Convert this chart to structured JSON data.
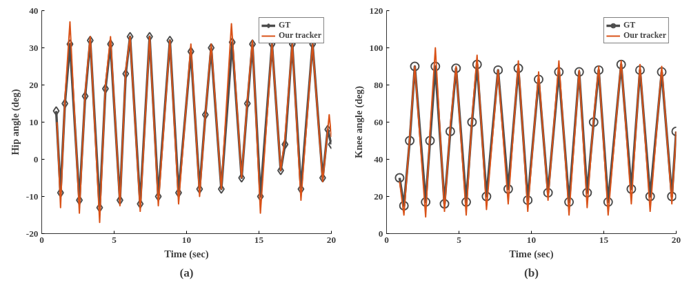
{
  "chart_data": [
    {
      "type": "line",
      "xlabel": "Time (sec)",
      "ylabel": "Hip angle (deg)",
      "annotations": [
        "(a)"
      ],
      "xlim": [
        0,
        20
      ],
      "ylim": [
        -20,
        40
      ],
      "xticks": [
        0,
        5,
        10,
        15,
        20
      ],
      "yticks": [
        -20,
        -10,
        0,
        10,
        20,
        30,
        40
      ],
      "grid": false,
      "legend": "top right",
      "series": [
        {
          "name": "GT",
          "color": "#4d4d4d",
          "marker": "diamond",
          "x": [
            1.0,
            1.3,
            1.6,
            1.95,
            2.6,
            3.0,
            3.35,
            4.0,
            4.4,
            4.75,
            5.4,
            5.8,
            6.1,
            6.8,
            7.45,
            8.05,
            8.85,
            9.45,
            10.3,
            10.9,
            11.3,
            11.7,
            12.4,
            13.15,
            13.8,
            14.2,
            14.55,
            15.1,
            15.9,
            16.5,
            16.8,
            17.3,
            17.9,
            18.7,
            19.4,
            19.75,
            20.0
          ],
          "values": [
            13,
            -9,
            15,
            31,
            -11,
            17,
            32,
            -13,
            19,
            31,
            -11,
            23,
            33,
            -12,
            33,
            -10,
            32,
            -9,
            29,
            -8,
            12,
            30,
            -8,
            31.5,
            -5,
            15,
            31,
            -10,
            31,
            -3,
            4,
            31,
            -8,
            31,
            -5,
            8,
            4
          ]
        },
        {
          "name": "Our tracker",
          "color": "#d95319",
          "marker": "none",
          "x": [
            1.05,
            1.3,
            1.6,
            1.95,
            2.6,
            3.0,
            3.35,
            4.0,
            4.4,
            4.75,
            5.4,
            5.8,
            6.1,
            6.8,
            7.45,
            8.05,
            8.85,
            9.45,
            10.3,
            10.9,
            11.3,
            11.7,
            12.4,
            13.1,
            13.8,
            14.2,
            14.55,
            15.1,
            15.9,
            16.5,
            16.8,
            17.3,
            17.9,
            18.7,
            19.4,
            19.85,
            20.0
          ],
          "values": [
            10,
            -13,
            16,
            37,
            -14.5,
            18,
            33,
            -17,
            20,
            33,
            -12.5,
            24,
            33,
            -14,
            33,
            -12.5,
            32,
            -12,
            31,
            -10,
            12,
            31,
            -8,
            36.5,
            -5,
            16,
            32,
            -14.5,
            31,
            -3,
            6,
            31,
            -11,
            31,
            -6,
            12,
            6
          ]
        }
      ]
    },
    {
      "type": "line",
      "xlabel": "Time (sec)",
      "ylabel": "Knee angle (deg)",
      "annotations": [
        "(b)"
      ],
      "xlim": [
        0,
        20
      ],
      "ylim": [
        0,
        120
      ],
      "xticks": [
        0,
        5,
        10,
        15,
        20
      ],
      "yticks": [
        0,
        20,
        40,
        60,
        80,
        100,
        120
      ],
      "grid": false,
      "legend": "top right",
      "series": [
        {
          "name": "GT",
          "color": "#4d4d4d",
          "marker": "circle",
          "x": [
            0.9,
            1.2,
            1.6,
            1.95,
            2.7,
            3.0,
            3.37,
            4.0,
            4.4,
            4.8,
            5.5,
            5.9,
            6.25,
            6.9,
            7.7,
            8.4,
            9.1,
            9.75,
            10.5,
            11.15,
            11.9,
            12.6,
            13.3,
            13.85,
            14.3,
            14.65,
            15.3,
            16.2,
            16.9,
            17.5,
            18.2,
            19.0,
            19.7,
            20.0
          ],
          "values": [
            30,
            15,
            50,
            90,
            17,
            50,
            90,
            16,
            55,
            89,
            17,
            60,
            91,
            20,
            88,
            24,
            89,
            18,
            83,
            22,
            87,
            17,
            87,
            22,
            60,
            88,
            17,
            91,
            24,
            88,
            20,
            87,
            20,
            55
          ]
        },
        {
          "name": "Our tracker",
          "color": "#d95319",
          "marker": "none",
          "x": [
            0.9,
            1.2,
            1.6,
            1.95,
            2.7,
            3.0,
            3.37,
            4.0,
            4.4,
            4.8,
            5.5,
            5.9,
            6.25,
            6.9,
            7.7,
            8.4,
            9.1,
            9.75,
            10.5,
            11.15,
            11.9,
            12.6,
            13.3,
            13.85,
            14.3,
            14.65,
            15.3,
            16.2,
            16.9,
            17.5,
            18.2,
            19.0,
            19.7,
            20.0
          ],
          "values": [
            28,
            10,
            52,
            90,
            9,
            55,
            100,
            12,
            58,
            90,
            10,
            62,
            96,
            13,
            88,
            16,
            93,
            12,
            87,
            18,
            93,
            10,
            88,
            14,
            62,
            90,
            10,
            93,
            16,
            91,
            12,
            90,
            16,
            55
          ]
        }
      ]
    }
  ]
}
